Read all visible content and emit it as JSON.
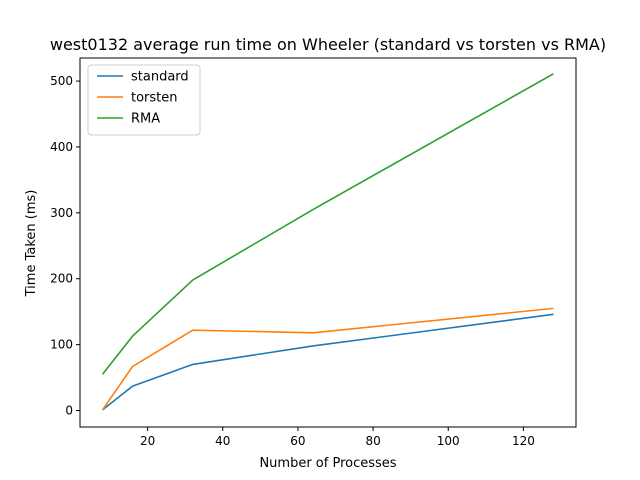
{
  "chart_data": {
    "type": "line",
    "title": "west0132 average run time on Wheeler (standard vs torsten vs RMA)",
    "xlabel": "Number of Processes",
    "ylabel": "Time Taken (ms)",
    "xlim": [
      2,
      134
    ],
    "ylim": [
      -25,
      535
    ],
    "xticks": [
      20,
      40,
      60,
      80,
      100,
      120
    ],
    "yticks": [
      0,
      100,
      200,
      300,
      400,
      500
    ],
    "grid": false,
    "legend": "top-left",
    "x": [
      8,
      16,
      32,
      64,
      128
    ],
    "series": [
      {
        "name": "standard",
        "color": "#1f77b4",
        "values": [
          1,
          37,
          70,
          98,
          146
        ]
      },
      {
        "name": "torsten",
        "color": "#ff7f0e",
        "values": [
          1,
          67,
          122,
          118,
          155
        ]
      },
      {
        "name": "RMA",
        "color": "#2ca02c",
        "values": [
          55,
          113,
          198,
          305,
          511
        ]
      }
    ]
  }
}
